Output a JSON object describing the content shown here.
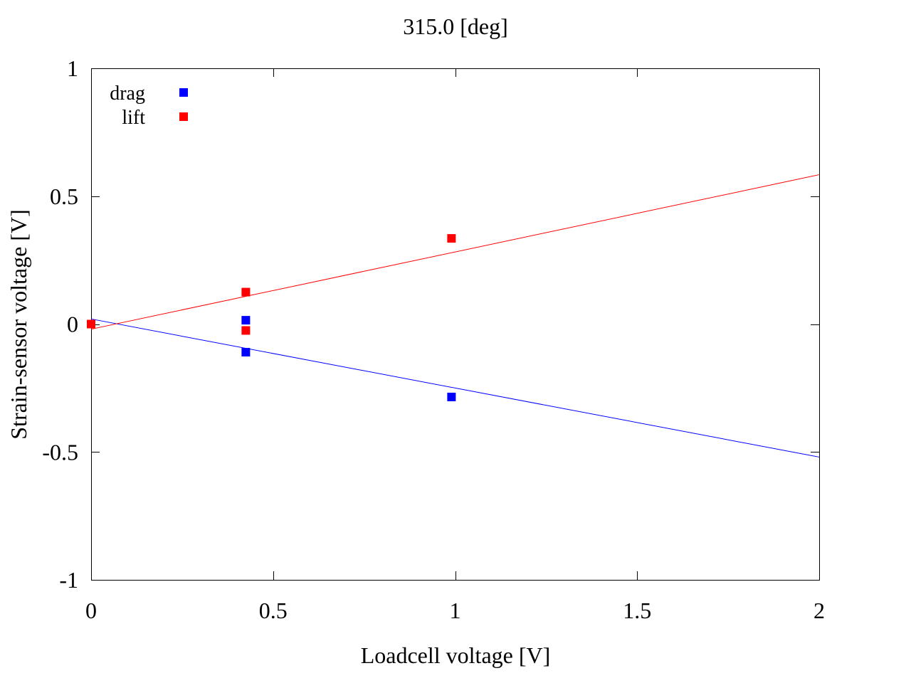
{
  "chart_data": {
    "type": "scatter",
    "title": "315.0 [deg]",
    "xlabel": "Loadcell voltage [V]",
    "ylabel": "Strain-sensor voltage [V]",
    "xlim": [
      0,
      2
    ],
    "ylim": [
      -1,
      1
    ],
    "xticks": [
      0,
      0.5,
      1,
      1.5,
      2
    ],
    "xtick_labels": [
      "0",
      "0.5",
      "1",
      "1.5",
      "2"
    ],
    "yticks": [
      -1,
      -0.5,
      0,
      0.5,
      1
    ],
    "ytick_labels": [
      "-1",
      "-0.5",
      "0",
      "0.5",
      "1"
    ],
    "grid": false,
    "legend": "top-left",
    "series": [
      {
        "name": "drag",
        "color": "#0000ff",
        "marker": "square",
        "points": [
          {
            "x": 0.0,
            "y": 0.0
          },
          {
            "x": 0.425,
            "y": 0.015
          },
          {
            "x": 0.425,
            "y": -0.11
          },
          {
            "x": 0.99,
            "y": -0.285
          }
        ],
        "fit": {
          "intercept": 0.02,
          "slope": -0.27
        }
      },
      {
        "name": "lift",
        "color": "#ff0000",
        "marker": "square",
        "points": [
          {
            "x": 0.0,
            "y": 0.0
          },
          {
            "x": 0.425,
            "y": 0.125
          },
          {
            "x": 0.425,
            "y": -0.025
          },
          {
            "x": 0.99,
            "y": 0.335
          }
        ],
        "fit": {
          "intercept": -0.02,
          "slope": 0.302
        }
      }
    ]
  }
}
